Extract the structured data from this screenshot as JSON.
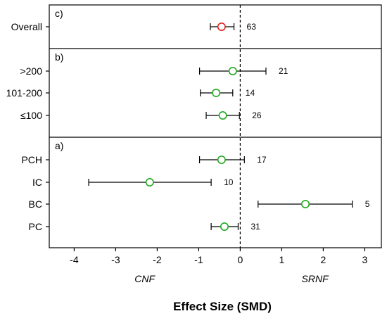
{
  "chart_data": {
    "type": "forest",
    "xlabel": "Effect Size (SMD)",
    "xlim": [
      -4.6,
      3.4
    ],
    "xticks": [
      -4,
      -3,
      -2,
      -1,
      0,
      1,
      2,
      3
    ],
    "xtick_labels": [
      "-4",
      "-3",
      "-2",
      "-1",
      "0",
      "1",
      "2",
      "3"
    ],
    "reference_line": 0,
    "left_side_label": "CNF",
    "right_side_label": "SRNF",
    "colors": {
      "overall_marker": "#e02020",
      "subgroup_marker": "#22aa22"
    },
    "panels": [
      {
        "label": "c)",
        "rows": [
          {
            "category": "Overall",
            "mean": -0.45,
            "lower": -0.72,
            "upper": -0.15,
            "n": "63",
            "marker": "overall"
          }
        ]
      },
      {
        "label": "b)",
        "rows": [
          {
            "category": ">200",
            "mean": -0.18,
            "lower": -0.98,
            "upper": 0.62,
            "n": "21",
            "marker": "subgroup"
          },
          {
            "category": "101-200",
            "mean": -0.58,
            "lower": -0.96,
            "upper": -0.18,
            "n": "14",
            "marker": "subgroup"
          },
          {
            "category": "≤100",
            "mean": -0.42,
            "lower": -0.82,
            "upper": -0.02,
            "n": "26",
            "marker": "subgroup"
          }
        ]
      },
      {
        "label": "a)",
        "rows": [
          {
            "category": "PCH",
            "mean": -0.45,
            "lower": -0.98,
            "upper": 0.1,
            "n": "17",
            "marker": "subgroup"
          },
          {
            "category": "IC",
            "mean": -2.18,
            "lower": -3.65,
            "upper": -0.7,
            "n": "10",
            "marker": "subgroup"
          },
          {
            "category": "BC",
            "mean": 1.57,
            "lower": 0.43,
            "upper": 2.7,
            "n": "5",
            "marker": "subgroup"
          },
          {
            "category": "PC",
            "mean": -0.38,
            "lower": -0.7,
            "upper": -0.05,
            "n": "31",
            "marker": "subgroup"
          }
        ]
      }
    ]
  }
}
